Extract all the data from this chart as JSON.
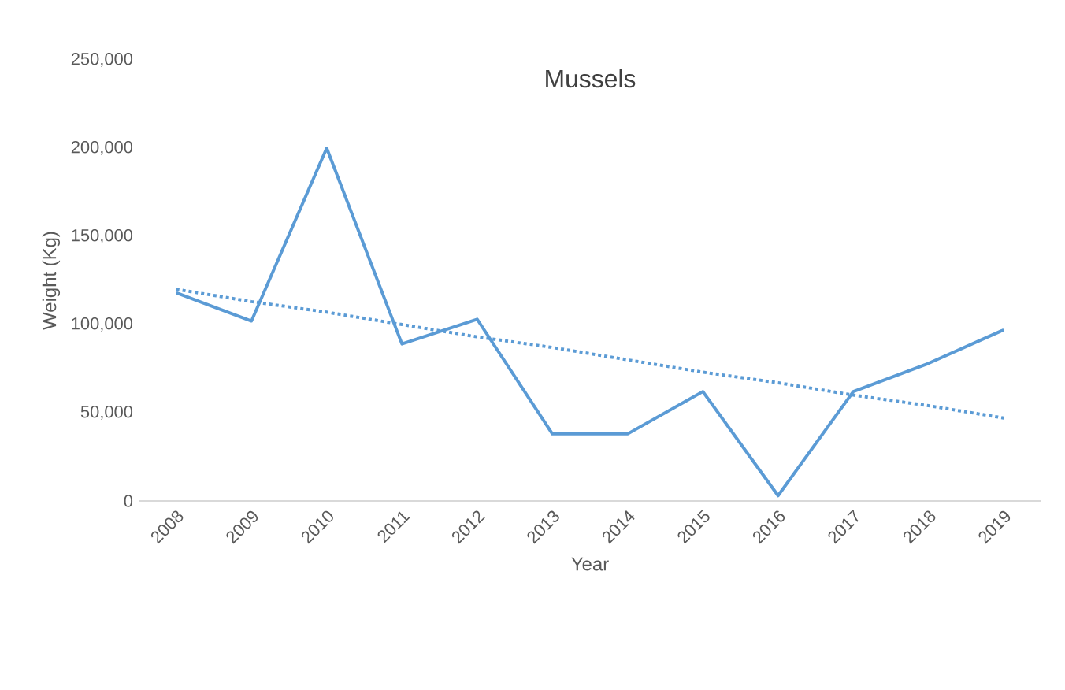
{
  "chart_data": {
    "type": "line",
    "title": "Mussels",
    "xlabel": "Year",
    "ylabel": "Weight (Kg)",
    "categories": [
      "2008",
      "2009",
      "2010",
      "2011",
      "2012",
      "2013",
      "2014",
      "2015",
      "2016",
      "2017",
      "2018",
      "2019"
    ],
    "series": [
      {
        "color": "#5b9bd5",
        "values": [
          118000,
          102000,
          200000,
          89000,
          103000,
          38000,
          38000,
          62000,
          3000,
          62000,
          78000,
          97000
        ]
      },
      {
        "type": "line",
        "color": "#5b9bd5",
        "line_style": "dotted",
        "values": [
          120000,
          113000,
          107000,
          100000,
          93000,
          87000,
          80000,
          73000,
          67000,
          60000,
          54000,
          47000
        ]
      }
    ],
    "ylim": [
      0,
      250000
    ],
    "yticks": [
      0,
      {
        "value": 50000,
        "label": "50,000"
      },
      {
        "value": 100000,
        "label": "100,000"
      },
      {
        "value": 150000,
        "label": "150,000"
      },
      {
        "value": 200000,
        "label": "200,000"
      },
      {
        "value": 250000,
        "label": "250,000"
      }
    ],
    "grid": false,
    "legend": false,
    "marker": "none"
  }
}
